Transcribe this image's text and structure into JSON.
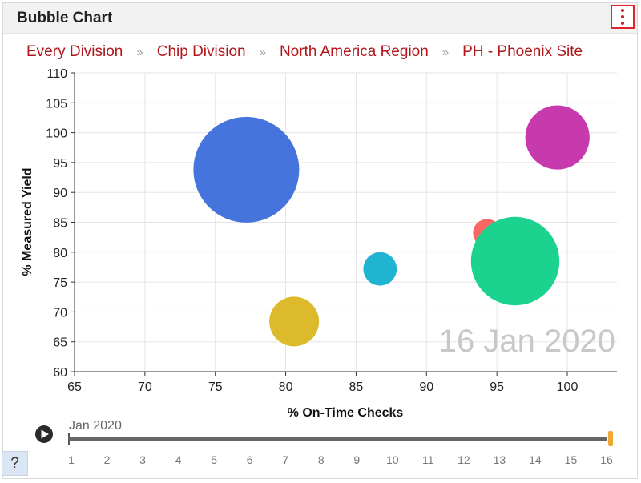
{
  "header": {
    "title": "Bubble Chart",
    "menu_icon": "vertical-dots-icon"
  },
  "breadcrumbs": [
    "Every Division",
    "Chip Division",
    "North America Region",
    "PH - Phoenix Site"
  ],
  "help_label": "?",
  "timeline": {
    "label": "Jan 2020",
    "ticks": [
      "1",
      "2",
      "3",
      "4",
      "5",
      "6",
      "7",
      "8",
      "9",
      "10",
      "11",
      "12",
      "13",
      "14",
      "15",
      "16"
    ],
    "current": 16,
    "play_icon": "play-icon"
  },
  "chart_data": {
    "type": "scatter",
    "xlabel": "% On-Time Checks",
    "ylabel": "% Measured Yield",
    "xlim": [
      65,
      104
    ],
    "ylim": [
      60,
      110
    ],
    "xticks": [
      65,
      70,
      75,
      80,
      85,
      90,
      95,
      100
    ],
    "yticks": [
      60,
      65,
      70,
      75,
      80,
      85,
      90,
      95,
      100,
      105,
      110
    ],
    "watermark": "16 Jan 2020",
    "grid": true,
    "points": [
      {
        "x": 77.2,
        "y": 93.8,
        "size": 100,
        "color": "#4674dd"
      },
      {
        "x": 99.3,
        "y": 99.2,
        "size": 37,
        "color": "#c63aad"
      },
      {
        "x": 94.3,
        "y": 83.2,
        "size": 7,
        "color": "#f96663"
      },
      {
        "x": 96.3,
        "y": 78.5,
        "size": 70,
        "color": "#1bd38f"
      },
      {
        "x": 86.7,
        "y": 77.2,
        "size": 10,
        "color": "#1fb4d2"
      },
      {
        "x": 80.6,
        "y": 68.4,
        "size": 22,
        "color": "#ddba2b"
      }
    ]
  }
}
